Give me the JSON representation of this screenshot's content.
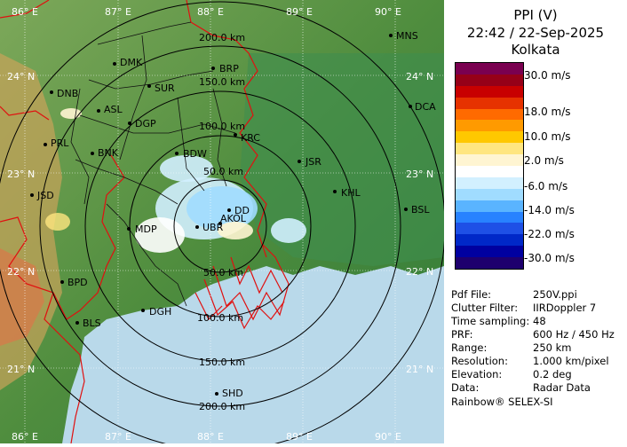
{
  "header": {
    "product": "PPI (V)",
    "datetime": "22:42 / 22-Sep-2025",
    "station": "Kolkata"
  },
  "legend": {
    "label_30": "30.0 m/s",
    "label_18": "18.0 m/s",
    "label_10": "10.0 m/s",
    "label_2": "2.0 m/s",
    "label_m6": "-6.0 m/s",
    "label_m14": "-14.0 m/s",
    "label_m22": "-22.0 m/s",
    "label_m30": "-30.0 m/s",
    "colors": [
      "#7a0050",
      "#960018",
      "#c80000",
      "#e63200",
      "#ff6a00",
      "#ff9a00",
      "#ffc800",
      "#ffe680",
      "#fff5d2",
      "#ffffff",
      "#d2f0ff",
      "#a0dcff",
      "#5ab4ff",
      "#2882ff",
      "#1e50e6",
      "#0028c8",
      "#0000a0",
      "#1e006e"
    ]
  },
  "info": {
    "pdf_file_label": "Pdf File:",
    "pdf_file_value": "250V.ppi",
    "clutter_label": "Clutter Filter:",
    "clutter_value": "IIRDoppler 7",
    "time_label": "Time sampling:",
    "time_value": "48",
    "prf_label": "PRF:",
    "prf_value": "600 Hz / 450 Hz",
    "range_label": "Range:",
    "range_value": "250 km",
    "resolution_label": "Resolution:",
    "resolution_value": "1.000 km/pixel",
    "elevation_label": "Elevation:",
    "elevation_value": "0.2 deg",
    "data_label": "Data:",
    "data_value": "Radar Data",
    "footer": "Rainbow® SELEX-SI"
  },
  "map": {
    "lon_top": [
      "86° E",
      "87° E",
      "88° E",
      "89° E",
      "90° E"
    ],
    "lon_bottom": [
      "86° E",
      "87° E",
      "88° E",
      "89° E",
      "90° E"
    ],
    "lat_left": [
      "24° N",
      "23° N",
      "22° N",
      "21° N"
    ],
    "lat_right": [
      "24° N",
      "23° N",
      "22° N",
      "21° N"
    ],
    "ring_labels": [
      "50.0 km",
      "100.0 km",
      "150.0 km",
      "200.0 km",
      "50.0 km",
      "100.0 km",
      "150.0 km",
      "200.0 km"
    ],
    "cities": [
      {
        "name": "MNS"
      },
      {
        "name": "DMK"
      },
      {
        "name": "BRP"
      },
      {
        "name": "DNB"
      },
      {
        "name": "SUR"
      },
      {
        "name": "DCA"
      },
      {
        "name": "ASL"
      },
      {
        "name": "DGP"
      },
      {
        "name": "KRC"
      },
      {
        "name": "PRL"
      },
      {
        "name": "BNK"
      },
      {
        "name": "BDW"
      },
      {
        "name": "JSR"
      },
      {
        "name": "KHL"
      },
      {
        "name": "JSD"
      },
      {
        "name": "DD"
      },
      {
        "name": "AKOL"
      },
      {
        "name": "BSL"
      },
      {
        "name": "MDP"
      },
      {
        "name": "UBR"
      },
      {
        "name": "BPD"
      },
      {
        "name": "DGH"
      },
      {
        "name": "BLS"
      },
      {
        "name": "SHD"
      }
    ]
  }
}
